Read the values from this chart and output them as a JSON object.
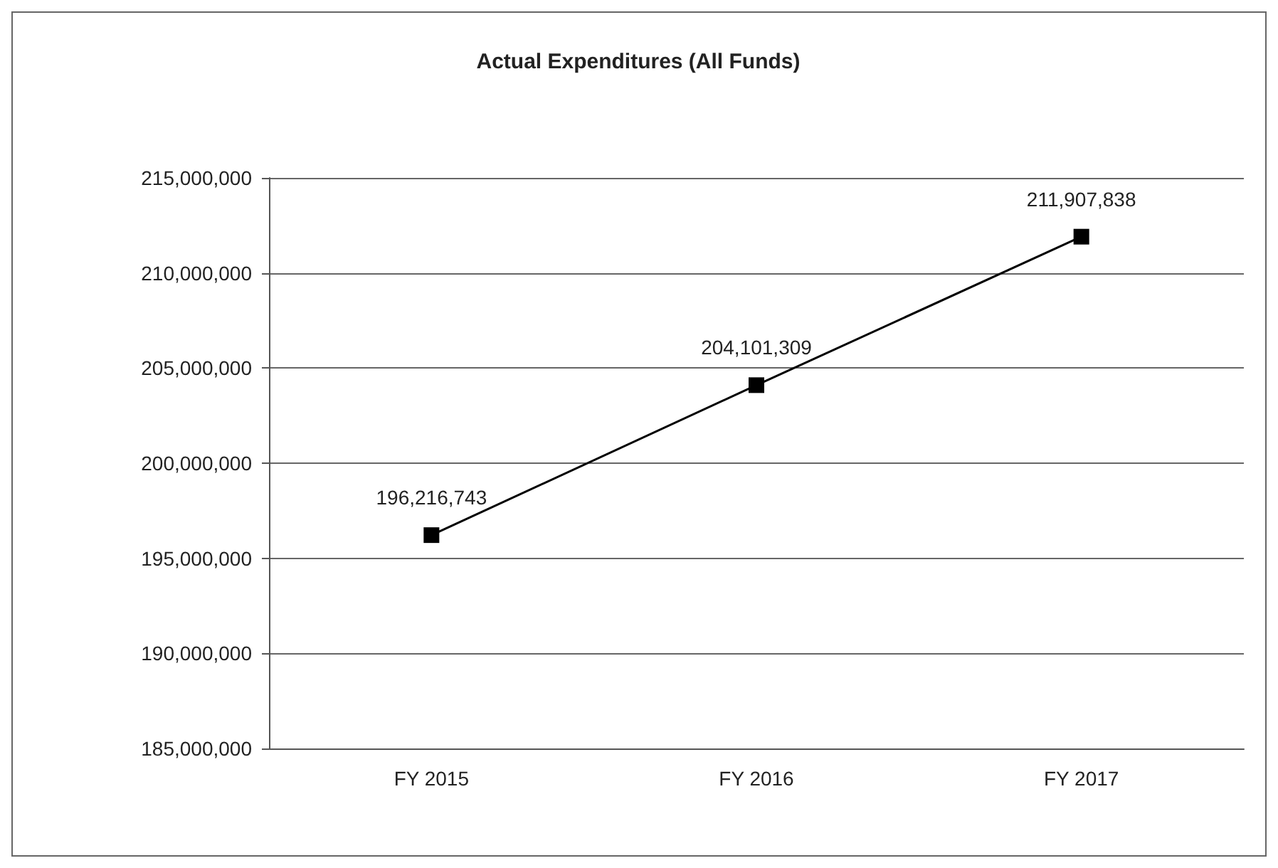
{
  "chart_data": {
    "type": "line",
    "title": "Actual Expenditures (All Funds)",
    "categories": [
      "FY 2015",
      "FY 2016",
      "FY 2017"
    ],
    "series": [
      {
        "color": "#000000",
        "values": [
          196216743,
          204101309,
          211907838
        ],
        "value_labels": [
          "196,216,743",
          "204,101,309",
          "211,907,838"
        ]
      }
    ],
    "ylim": [
      185000000,
      215000000
    ],
    "yticks": [
      {
        "value": 185000000,
        "label": "185,000,000"
      },
      {
        "value": 190000000,
        "label": "190,000,000"
      },
      {
        "value": 195000000,
        "label": "195,000,000"
      },
      {
        "value": 200000000,
        "label": "200,000,000"
      },
      {
        "value": 205000000,
        "label": "205,000,000"
      },
      {
        "value": 210000000,
        "label": "210,000,000"
      },
      {
        "value": 215000000,
        "label": "215,000,000"
      }
    ],
    "grid": "y",
    "marker": "square",
    "line_style": "solid"
  }
}
